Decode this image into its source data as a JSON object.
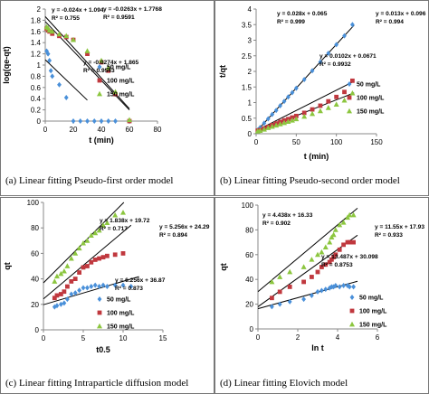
{
  "chart_data": [
    {
      "id": "a",
      "type": "scatter",
      "caption": "(a) Linear fitting Pseudo-first order model",
      "xlabel": "t (min)",
      "ylabel": "log(qe-qt)",
      "xlim": [
        0,
        80
      ],
      "ylim": [
        0,
        2
      ],
      "xticks": [
        0,
        20,
        40,
        60,
        80
      ],
      "yticks": [
        0,
        0.2,
        0.4,
        0.6,
        0.8,
        1,
        1.2,
        1.4,
        1.6,
        1.8,
        2
      ],
      "grid": false,
      "legend": "right",
      "series": [
        {
          "name": "50 mg/L",
          "color": "#4a90d9",
          "marker": "diamond",
          "x": [
            1,
            2,
            3,
            4,
            5,
            10,
            15,
            20,
            25,
            30,
            35,
            40,
            45,
            50,
            60
          ],
          "y": [
            1.25,
            1.2,
            1.08,
            0.9,
            0.8,
            0.65,
            0.42,
            0.0,
            0.0,
            0.0,
            0.0,
            0.0,
            0.0,
            0.0,
            0.0
          ]
        },
        {
          "name": "100 mg/L",
          "color": "#c0383e",
          "marker": "square",
          "x": [
            1,
            2,
            3,
            5,
            10,
            15,
            20,
            30,
            40,
            45,
            50,
            60
          ],
          "y": [
            1.65,
            1.62,
            1.6,
            1.56,
            1.52,
            1.5,
            1.45,
            1.2,
            1.05,
            0.9,
            0.48,
            0.0
          ]
        },
        {
          "name": "150 mg/L",
          "color": "#8cc63f",
          "marker": "triangle",
          "x": [
            1,
            2,
            3,
            5,
            10,
            15,
            20,
            30,
            40,
            45,
            50,
            60
          ],
          "y": [
            1.68,
            1.66,
            1.62,
            1.6,
            1.55,
            1.52,
            1.45,
            1.25,
            1.08,
            0.95,
            0.52,
            0.02
          ]
        }
      ],
      "fits": [
        {
          "x0": 0,
          "x1": 30,
          "slope": -0.024,
          "intercept": 1.094
        },
        {
          "x0": 0,
          "x1": 60,
          "slope": -0.0263,
          "intercept": 1.7768
        },
        {
          "x0": 0,
          "x1": 60,
          "slope": -0.0274,
          "intercept": 1.865
        }
      ],
      "annotations": [
        {
          "line1": "y = -0.024x + 1.094",
          "line2": "R² = 0.755"
        },
        {
          "line1": "y = -0.0263x + 1.7768",
          "line2": "R² = 0.9591"
        },
        {
          "line1": "y = -0.0274x + 1.865",
          "line2": "R² = 0.9543"
        }
      ]
    },
    {
      "id": "b",
      "type": "scatter",
      "caption": "(b) Linear fitting Pseudo-second order model",
      "xlabel": "t (min)",
      "ylabel": "t/qt",
      "xlim": [
        0,
        150
      ],
      "ylim": [
        0,
        4
      ],
      "xticks": [
        0,
        50,
        100,
        150
      ],
      "yticks": [
        0,
        0.5,
        1,
        1.5,
        2,
        2.5,
        3,
        3.5,
        4
      ],
      "grid": false,
      "legend": "right",
      "series": [
        {
          "name": "50 mg/L",
          "color": "#4a90d9",
          "marker": "diamond",
          "x": [
            2,
            5,
            10,
            15,
            20,
            25,
            30,
            35,
            40,
            45,
            50,
            60,
            70,
            80,
            90,
            100,
            110,
            120
          ],
          "y": [
            0.12,
            0.2,
            0.34,
            0.48,
            0.62,
            0.75,
            0.9,
            1.04,
            1.18,
            1.32,
            1.46,
            1.74,
            2.02,
            2.3,
            2.58,
            2.86,
            3.14,
            3.5
          ]
        },
        {
          "name": "100 mg/L",
          "color": "#c0383e",
          "marker": "square",
          "x": [
            2,
            5,
            10,
            15,
            20,
            25,
            30,
            35,
            40,
            45,
            50,
            60,
            70,
            80,
            90,
            100,
            110,
            120
          ],
          "y": [
            0.1,
            0.12,
            0.17,
            0.22,
            0.28,
            0.33,
            0.38,
            0.43,
            0.47,
            0.52,
            0.57,
            0.67,
            0.78,
            0.9,
            1.04,
            1.18,
            1.34,
            1.7
          ]
        },
        {
          "name": "150 mg/L",
          "color": "#8cc63f",
          "marker": "triangle",
          "x": [
            2,
            5,
            10,
            15,
            20,
            25,
            30,
            35,
            40,
            45,
            50,
            60,
            70,
            80,
            90,
            100,
            110,
            120
          ],
          "y": [
            0.08,
            0.1,
            0.14,
            0.19,
            0.23,
            0.27,
            0.31,
            0.35,
            0.39,
            0.43,
            0.47,
            0.55,
            0.64,
            0.73,
            0.83,
            0.94,
            1.07,
            1.3
          ]
        }
      ],
      "fits": [
        {
          "x0": 0,
          "x1": 122,
          "slope": 0.028,
          "intercept": 0.065
        },
        {
          "x0": 0,
          "x1": 122,
          "slope": 0.0102,
          "intercept": 0.0671
        },
        {
          "x0": 0,
          "x1": 122,
          "slope": 0.013,
          "intercept": 0.096
        }
      ],
      "annotations": [
        {
          "line1": "y = 0.028x + 0.065",
          "line2": "R² = 0.999"
        },
        {
          "line1": "y = 0.013x + 0.096",
          "line2": "R² = 0.994"
        },
        {
          "line1": "y = 0.0102x + 0.0671",
          "line2": "R² = 0.9932"
        }
      ]
    },
    {
      "id": "c",
      "type": "scatter",
      "caption": "(c) Linear fitting Intraparticle diffusion model",
      "xlabel": "t0.5",
      "ylabel": "qt",
      "xlim": [
        0,
        15
      ],
      "ylim": [
        0,
        100
      ],
      "xticks": [
        0,
        5,
        10,
        15
      ],
      "yticks": [
        0,
        20,
        40,
        60,
        80,
        100
      ],
      "grid": false,
      "legend": "right",
      "series": [
        {
          "name": "50 mg/L",
          "color": "#4a90d9",
          "marker": "diamond",
          "x": [
            1.4,
            1.7,
            2.2,
            2.6,
            3,
            3.5,
            4,
            4.5,
            5,
            5.5,
            6,
            6.5,
            7,
            7.5,
            8,
            9,
            10,
            11
          ],
          "y": [
            18,
            19,
            20,
            21,
            24,
            28,
            29,
            31,
            33,
            33,
            34,
            35,
            34,
            35,
            34,
            35,
            35,
            34
          ]
        },
        {
          "name": "100 mg/L",
          "color": "#c0383e",
          "marker": "square",
          "x": [
            1.4,
            1.7,
            2.2,
            2.6,
            3,
            3.5,
            4,
            4.5,
            5,
            5.5,
            6,
            6.5,
            7,
            7.5,
            8,
            9,
            10
          ],
          "y": [
            25,
            27,
            28,
            30,
            34,
            38,
            40,
            45,
            49,
            50,
            53,
            55,
            56,
            57,
            58,
            59,
            60
          ]
        },
        {
          "name": "150 mg/L",
          "color": "#8cc63f",
          "marker": "triangle",
          "x": [
            1.4,
            1.7,
            2.2,
            2.6,
            3,
            3.5,
            4,
            4.5,
            5,
            5.5,
            6,
            6.5,
            7,
            7.5,
            8,
            9,
            10
          ],
          "y": [
            38,
            42,
            44,
            46,
            50,
            56,
            60,
            64,
            68,
            70,
            74,
            76,
            78,
            82,
            84,
            90,
            92
          ]
        }
      ],
      "fits": [
        {
          "x0": 0,
          "x1": 12,
          "slope": 1.838,
          "intercept": 19.72
        },
        {
          "x0": 0,
          "x1": 11,
          "slope": 6.256,
          "intercept": 36.87
        },
        {
          "x0": 0,
          "x1": 11,
          "slope": 5.256,
          "intercept": 24.29
        }
      ],
      "annotations": [
        {
          "line1": "y = 1.838x + 19.72",
          "line2": "R² = 0.717"
        },
        {
          "line1": "y = 5.256x + 24.29",
          "line2": "R² = 0.894"
        },
        {
          "line1": "y = 6.256x + 36.87",
          "line2": "R² = 0.873"
        }
      ]
    },
    {
      "id": "d",
      "type": "scatter",
      "caption": "(d) Linear fitting Elovich model",
      "xlabel": "ln t",
      "ylabel": "qt",
      "xlim": [
        0,
        6
      ],
      "ylim": [
        0,
        100
      ],
      "xticks": [
        0,
        2,
        4,
        6
      ],
      "yticks": [
        0,
        20,
        40,
        60,
        80,
        100
      ],
      "grid": false,
      "legend": "right",
      "series": [
        {
          "name": "50 mg/L",
          "color": "#4a90d9",
          "marker": "diamond",
          "x": [
            0.7,
            1.1,
            1.6,
            2.3,
            2.7,
            3.0,
            3.2,
            3.4,
            3.6,
            3.7,
            3.8,
            3.9,
            4.1,
            4.3,
            4.5,
            4.6,
            4.8
          ],
          "y": [
            18,
            20,
            22,
            24,
            27,
            30,
            31,
            32,
            33,
            34,
            34,
            35,
            34,
            35,
            35,
            34,
            34
          ]
        },
        {
          "name": "100 mg/L",
          "color": "#c0383e",
          "marker": "square",
          "x": [
            0.7,
            1.1,
            1.6,
            2.3,
            2.7,
            3.0,
            3.2,
            3.4,
            3.6,
            3.7,
            3.8,
            3.9,
            4.1,
            4.3,
            4.5,
            4.6,
            4.8
          ],
          "y": [
            25,
            30,
            34,
            38,
            42,
            46,
            50,
            52,
            54,
            56,
            58,
            60,
            64,
            68,
            70,
            70,
            70
          ]
        },
        {
          "name": "150 mg/L",
          "color": "#8cc63f",
          "marker": "triangle",
          "x": [
            0.7,
            1.1,
            1.6,
            2.3,
            2.7,
            3.0,
            3.2,
            3.4,
            3.6,
            3.7,
            3.8,
            3.9,
            4.1,
            4.3,
            4.5,
            4.6,
            4.8
          ],
          "y": [
            38,
            42,
            46,
            50,
            56,
            60,
            62,
            66,
            70,
            74,
            76,
            80,
            84,
            86,
            90,
            92,
            92
          ]
        }
      ],
      "fits": [
        {
          "x0": 0,
          "x1": 5,
          "slope": 4.438,
          "intercept": 16.33
        },
        {
          "x0": 0,
          "x1": 5,
          "slope": 13.487,
          "intercept": 30.098
        },
        {
          "x0": 0,
          "x1": 5,
          "slope": 11.55,
          "intercept": 17.93
        }
      ],
      "annotations": [
        {
          "line1": "y = 4.438x + 16.33",
          "line2": "R² = 0.902"
        },
        {
          "line1": "y = 11.55x + 17.93",
          "line2": "R² = 0.933"
        },
        {
          "line1": "y = 13.487x + 30.098",
          "line2": "R² = 0.8753"
        }
      ]
    }
  ]
}
